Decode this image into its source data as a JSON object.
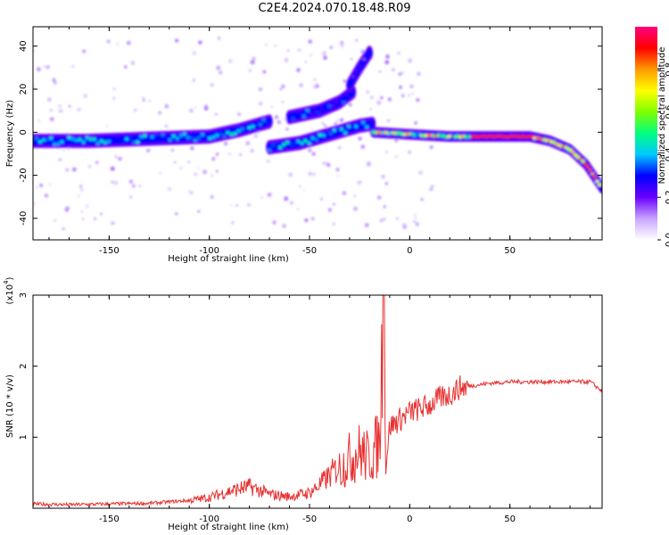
{
  "title": "C2E4.2024.070.18.48.R09",
  "chart_data": [
    {
      "type": "heatmap",
      "xlabel": "Height of straight line (km)",
      "ylabel": "Frequency (Hz)",
      "xlim": [
        -188,
        96
      ],
      "ylim": [
        -50,
        49
      ],
      "xticks": [
        -150,
        -100,
        -50,
        0,
        50
      ],
      "yticks": [
        -40,
        -20,
        0,
        20,
        40
      ],
      "colorbar": {
        "label": "Normalized spectral amplitude",
        "range": [
          0.0,
          1.0
        ],
        "ticks": [
          "0.0",
          "0.2",
          "0.4",
          "0.6",
          "0.8"
        ],
        "colors": [
          "#ffffff",
          "#c9a3ff",
          "#6a00ff",
          "#0000ff",
          "#00c8ff",
          "#00ff80",
          "#80ff00",
          "#ffff00",
          "#ff9900",
          "#ff0000",
          "#ff0080"
        ]
      },
      "ridges": [
        {
          "x": [
            -188,
            -160,
            -130,
            -100,
            -85,
            -70
          ],
          "y": [
            -4,
            -4,
            -3,
            -2,
            1,
            5
          ],
          "amplitude": 0.45
        },
        {
          "x": [
            -70,
            -55,
            -40,
            -25,
            -18
          ],
          "y": [
            -7,
            -5,
            -1,
            3,
            4
          ],
          "amplitude": 0.45
        },
        {
          "x": [
            -18,
            0,
            20,
            40,
            60,
            70,
            80,
            88,
            96
          ],
          "y": [
            0,
            -1,
            -2,
            -2,
            -2,
            -4,
            -8,
            -15,
            -26
          ],
          "amplitude": 0.9
        },
        {
          "x": [
            -60,
            -45,
            -35,
            -28
          ],
          "y": [
            7,
            10,
            14,
            19
          ],
          "amplitude": 0.35
        },
        {
          "x": [
            -30,
            -25,
            -20
          ],
          "y": [
            22,
            30,
            37
          ],
          "amplitude": 0.25
        }
      ]
    },
    {
      "type": "line",
      "xlabel": "Height of straight line (km)",
      "ylabel": "SNR (10 * v/v)",
      "multiplier": "(x10",
      "multiplier_exp": "4",
      "multiplier_close": ")",
      "xlim": [
        -188,
        96
      ],
      "ylim": [
        0,
        3
      ],
      "xticks": [
        -150,
        -100,
        -50,
        0,
        50
      ],
      "yticks": [
        1,
        2,
        3
      ],
      "color": "#e83030",
      "series": [
        {
          "x": [
            -188,
            -170,
            -150,
            -130,
            -110,
            -100,
            -90,
            -80,
            -70,
            -60,
            -50,
            -45,
            -40,
            -35,
            -30,
            -25,
            -20,
            -15,
            -13,
            -12,
            -10,
            -5,
            0,
            5,
            10,
            15,
            20,
            25,
            30,
            40,
            50,
            60,
            70,
            80,
            90,
            96
          ],
          "y": [
            0.05,
            0.04,
            0.05,
            0.06,
            0.1,
            0.14,
            0.22,
            0.28,
            0.18,
            0.15,
            0.2,
            0.3,
            0.42,
            0.55,
            0.7,
            0.8,
            0.7,
            0.95,
            3.0,
            0.6,
            1.15,
            1.25,
            1.35,
            1.4,
            1.45,
            1.55,
            1.6,
            1.7,
            1.72,
            1.76,
            1.78,
            1.78,
            1.78,
            1.78,
            1.78,
            1.65
          ]
        }
      ]
    }
  ]
}
